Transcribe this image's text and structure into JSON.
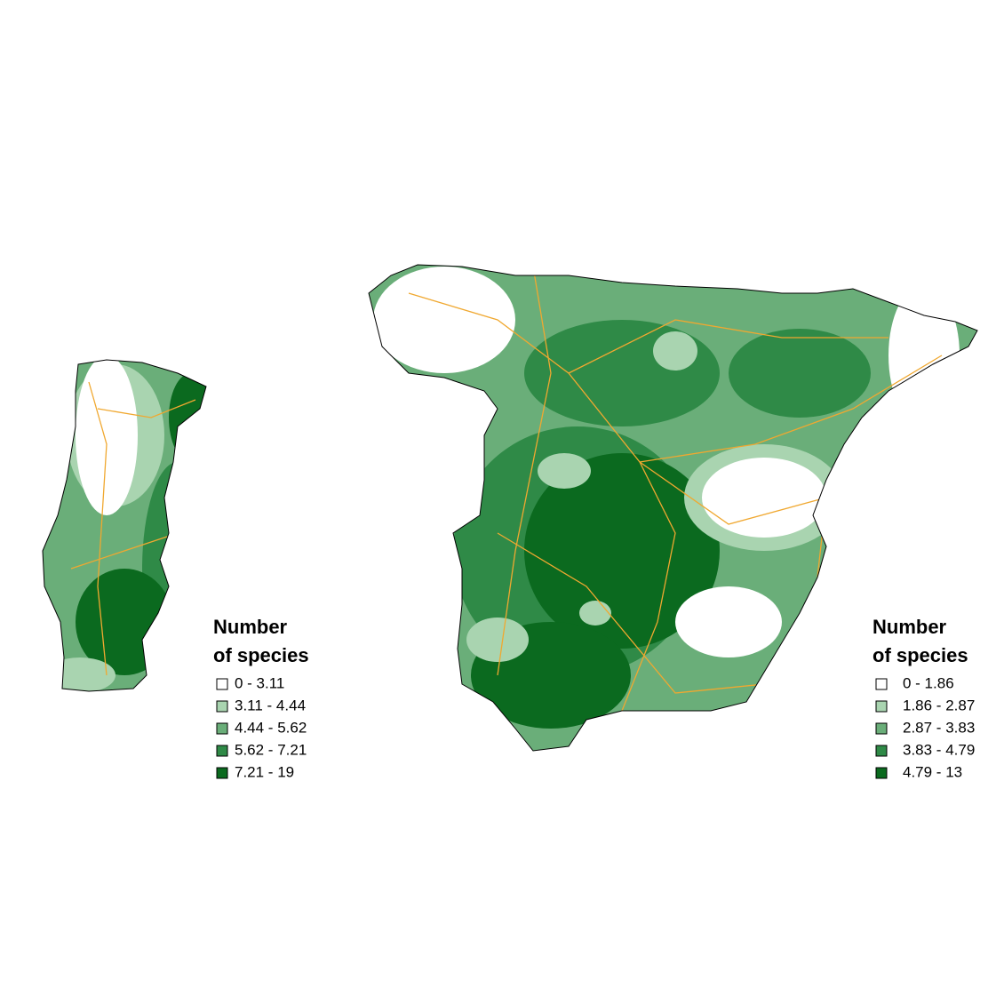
{
  "legends": [
    {
      "title": [
        "Number",
        "of species"
      ],
      "items": [
        {
          "label": "0 - 3.11",
          "color": "#ffffff"
        },
        {
          "label": "3.11 - 4.44",
          "color": "#a9d4b0"
        },
        {
          "label": "4.44 - 5.62",
          "color": "#6aae79"
        },
        {
          "label": "5.62 - 7.21",
          "color": "#2f8a47"
        },
        {
          "label": "7.21 - 19",
          "color": "#0b6a1f"
        }
      ]
    },
    {
      "title": [
        "Number",
        "of species"
      ],
      "items": [
        {
          "label": "0 - 1.86",
          "color": "#ffffff"
        },
        {
          "label": "1.86 - 2.87",
          "color": "#a9d4b0"
        },
        {
          "label": "2.87 - 3.83",
          "color": "#6aae79"
        },
        {
          "label": "3.83 - 4.79",
          "color": "#2f8a47"
        },
        {
          "label": "4.79 - 13",
          "color": "#0b6a1f"
        }
      ]
    }
  ]
}
